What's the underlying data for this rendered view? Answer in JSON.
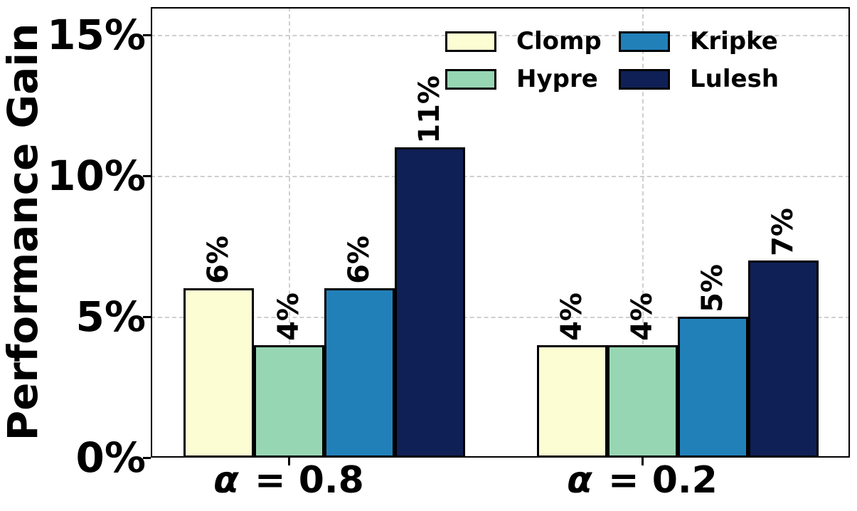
{
  "chart_data": {
    "type": "bar",
    "title": "",
    "ylabel": "Performance Gain",
    "xlabel": "",
    "categories": [
      "α = 0.8",
      "α = 0.2"
    ],
    "category_parts": [
      {
        "symbol": "α",
        "rest": " = 0.8"
      },
      {
        "symbol": "α",
        "rest": " = 0.2"
      }
    ],
    "series": [
      {
        "name": "Clomp",
        "color": "#FDFDD3",
        "values": [
          6,
          4
        ],
        "value_labels": [
          "6%",
          "4%"
        ]
      },
      {
        "name": "Hypre",
        "color": "#97D6B3",
        "values": [
          4,
          4
        ],
        "value_labels": [
          "4%",
          "4%"
        ]
      },
      {
        "name": "Kripke",
        "color": "#2280B9",
        "values": [
          6,
          5
        ],
        "value_labels": [
          "6%",
          "5%"
        ]
      },
      {
        "name": "Lulesh",
        "color": "#0F2056",
        "values": [
          11,
          7
        ],
        "value_labels": [
          "11%",
          "7%"
        ]
      }
    ],
    "yticks": [
      {
        "value": 0,
        "label": "0%"
      },
      {
        "value": 5,
        "label": "5%"
      },
      {
        "value": 10,
        "label": "10%"
      },
      {
        "value": 15,
        "label": "15%"
      }
    ],
    "ylim": [
      0,
      16
    ],
    "grid": {
      "enabled": true,
      "style": "dashed",
      "color": "#cfcfcf"
    },
    "legend": {
      "position": "upper-right-inside",
      "columns": 2,
      "entries": [
        "Clomp",
        "Hypre",
        "Kripke",
        "Lulesh"
      ]
    },
    "bar_edge_color": "#000000",
    "value_label_rotation_deg": 90
  },
  "style": {
    "background": "#ffffff",
    "axis_color": "#000000",
    "text_color": "#000000"
  }
}
